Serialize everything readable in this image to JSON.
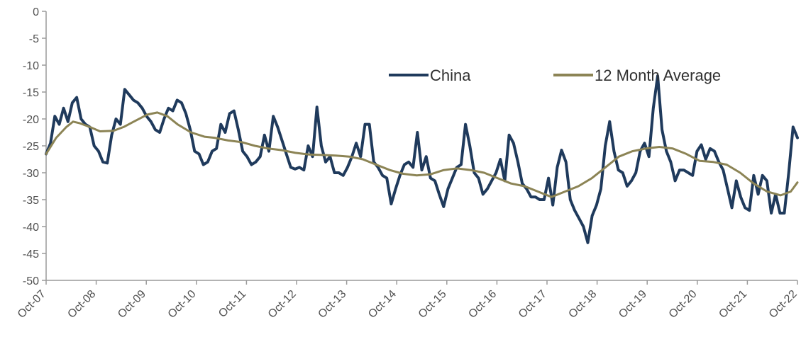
{
  "chart_data": {
    "type": "line",
    "title": "",
    "xlabel": "",
    "ylabel": "",
    "ylim": [
      -50,
      0
    ],
    "yticks": [
      0,
      -5,
      -10,
      -15,
      -20,
      -25,
      -30,
      -35,
      -40,
      -45,
      -50
    ],
    "xtick_labels": [
      "Oct-07",
      "Oct-08",
      "Oct-09",
      "Oct-10",
      "Oct-11",
      "Oct-12",
      "Oct-13",
      "Oct-14",
      "Oct-15",
      "Oct-16",
      "Oct-17",
      "Oct-18",
      "Oct-19",
      "Oct-20",
      "Oct-21",
      "Oct-22"
    ],
    "grid": false,
    "legend_position": "top-right",
    "series": [
      {
        "name": "China",
        "color": "#1f3a5c",
        "points": [
          [
            0.0,
            -26.5
          ],
          [
            0.1,
            -24.5
          ],
          [
            0.2,
            -19.5
          ],
          [
            0.3,
            -21
          ],
          [
            0.4,
            -18
          ],
          [
            0.5,
            -20.5
          ],
          [
            0.6,
            -17
          ],
          [
            0.7,
            -16
          ],
          [
            0.8,
            -20
          ],
          [
            0.9,
            -21
          ],
          [
            1.0,
            -21.5
          ],
          [
            1.1,
            -25
          ],
          [
            1.2,
            -26
          ],
          [
            1.3,
            -28
          ],
          [
            1.4,
            -28.2
          ],
          [
            1.5,
            -23
          ],
          [
            1.6,
            -20
          ],
          [
            1.7,
            -21
          ],
          [
            1.8,
            -14.5
          ],
          [
            1.9,
            -15.5
          ],
          [
            2.0,
            -16.5
          ],
          [
            2.1,
            -17
          ],
          [
            2.2,
            -18
          ],
          [
            2.3,
            -19.5
          ],
          [
            2.4,
            -20.5
          ],
          [
            2.5,
            -22
          ],
          [
            2.6,
            -22.5
          ],
          [
            2.7,
            -20
          ],
          [
            2.8,
            -18
          ],
          [
            2.9,
            -18.5
          ],
          [
            3.0,
            -16.5
          ],
          [
            3.1,
            -17
          ],
          [
            3.2,
            -19
          ],
          [
            3.3,
            -22
          ],
          [
            3.4,
            -26
          ],
          [
            3.5,
            -26.5
          ],
          [
            3.6,
            -28.5
          ],
          [
            3.7,
            -28
          ],
          [
            3.8,
            -26
          ],
          [
            3.9,
            -25.5
          ],
          [
            4.0,
            -21
          ],
          [
            4.1,
            -22.5
          ],
          [
            4.2,
            -19
          ],
          [
            4.3,
            -18.5
          ],
          [
            4.4,
            -22
          ],
          [
            4.5,
            -26
          ],
          [
            4.6,
            -27
          ],
          [
            4.7,
            -28.5
          ],
          [
            4.8,
            -28
          ],
          [
            4.9,
            -27
          ],
          [
            5.0,
            -23
          ],
          [
            5.1,
            -26
          ],
          [
            5.2,
            -19.5
          ],
          [
            5.3,
            -21.5
          ],
          [
            5.4,
            -24
          ],
          [
            5.5,
            -26.5
          ],
          [
            5.6,
            -29
          ],
          [
            5.7,
            -29.3
          ],
          [
            5.8,
            -29
          ],
          [
            5.9,
            -29.5
          ],
          [
            6.0,
            -25
          ],
          [
            6.1,
            -27
          ],
          [
            6.2,
            -17.8
          ],
          [
            6.3,
            -25
          ],
          [
            6.4,
            -28
          ],
          [
            6.5,
            -27
          ],
          [
            6.6,
            -30
          ],
          [
            6.7,
            -30
          ],
          [
            6.8,
            -30.5
          ],
          [
            6.9,
            -29
          ],
          [
            7.0,
            -27
          ],
          [
            7.1,
            -24.5
          ],
          [
            7.2,
            -27
          ],
          [
            7.3,
            -21
          ],
          [
            7.4,
            -21
          ],
          [
            7.5,
            -28
          ],
          [
            7.6,
            -29
          ],
          [
            7.7,
            -30.5
          ],
          [
            7.8,
            -31
          ],
          [
            7.9,
            -35.8
          ],
          [
            8.0,
            -33
          ],
          [
            8.1,
            -30.5
          ],
          [
            8.2,
            -28.5
          ],
          [
            8.3,
            -28
          ],
          [
            8.4,
            -29
          ],
          [
            8.5,
            -22.5
          ],
          [
            8.6,
            -29.5
          ],
          [
            8.7,
            -27
          ],
          [
            8.8,
            -31
          ],
          [
            8.9,
            -31.5
          ],
          [
            9.0,
            -34
          ],
          [
            9.1,
            -36.3
          ],
          [
            9.2,
            -33
          ],
          [
            9.3,
            -31
          ],
          [
            9.4,
            -29
          ],
          [
            9.5,
            -28.5
          ],
          [
            9.6,
            -21
          ],
          [
            9.7,
            -25
          ],
          [
            9.8,
            -30
          ],
          [
            9.9,
            -31
          ],
          [
            10.0,
            -34
          ],
          [
            10.1,
            -33
          ],
          [
            10.2,
            -31.5
          ],
          [
            10.3,
            -30
          ],
          [
            10.4,
            -27.5
          ],
          [
            10.5,
            -31.5
          ],
          [
            10.6,
            -23
          ],
          [
            10.7,
            -24.5
          ],
          [
            10.8,
            -28
          ],
          [
            10.9,
            -32
          ],
          [
            11.0,
            -33
          ],
          [
            11.1,
            -34.5
          ],
          [
            11.2,
            -34.5
          ],
          [
            11.3,
            -35
          ],
          [
            11.4,
            -35
          ],
          [
            11.5,
            -31
          ],
          [
            11.6,
            -36
          ],
          [
            11.7,
            -29
          ],
          [
            11.8,
            -25.8
          ],
          [
            11.9,
            -28
          ],
          [
            12.0,
            -35
          ],
          [
            12.1,
            -37
          ],
          [
            12.2,
            -38.5
          ],
          [
            12.3,
            -40
          ],
          [
            12.4,
            -43
          ],
          [
            12.5,
            -38
          ],
          [
            12.6,
            -36
          ],
          [
            12.7,
            -33
          ],
          [
            12.8,
            -25
          ],
          [
            12.9,
            -20.5
          ],
          [
            13.0,
            -26
          ],
          [
            13.1,
            -29.5
          ],
          [
            13.2,
            -30
          ],
          [
            13.3,
            -32.5
          ],
          [
            13.4,
            -31.5
          ],
          [
            13.5,
            -30
          ],
          [
            13.6,
            -26
          ],
          [
            13.7,
            -24.5
          ],
          [
            13.8,
            -27
          ],
          [
            13.9,
            -18
          ],
          [
            14.0,
            -12
          ],
          [
            14.1,
            -22
          ],
          [
            14.2,
            -26
          ],
          [
            14.3,
            -28
          ],
          [
            14.4,
            -31.5
          ],
          [
            14.5,
            -29.5
          ],
          [
            14.6,
            -29.5
          ],
          [
            14.7,
            -30
          ],
          [
            14.8,
            -30.5
          ],
          [
            14.9,
            -26
          ],
          [
            15.0,
            -24.8
          ],
          [
            15.1,
            -27.5
          ],
          [
            15.2,
            -25.5
          ],
          [
            15.3,
            -26
          ],
          [
            15.4,
            -28
          ],
          [
            15.5,
            -29.5
          ],
          [
            15.6,
            -33
          ],
          [
            15.7,
            -36.5
          ],
          [
            15.8,
            -31.5
          ],
          [
            15.9,
            -34.5
          ],
          [
            16.0,
            -36.5
          ],
          [
            16.1,
            -37
          ],
          [
            16.2,
            -30.5
          ],
          [
            16.3,
            -34
          ],
          [
            16.4,
            -30.5
          ],
          [
            16.5,
            -31.5
          ],
          [
            16.6,
            -37.5
          ],
          [
            16.7,
            -34
          ],
          [
            16.8,
            -37.5
          ],
          [
            16.9,
            -37.5
          ],
          [
            17.0,
            -30
          ],
          [
            17.1,
            -21.5
          ],
          [
            17.2,
            -23.5
          ]
        ]
      },
      {
        "name": "12 Month Average",
        "color": "#8c8455",
        "points": [
          [
            0.0,
            -26.5
          ],
          [
            0.3,
            -23.5
          ],
          [
            0.6,
            -21.5
          ],
          [
            0.8,
            -20.5
          ],
          [
            1.0,
            -20.8
          ],
          [
            1.3,
            -21.5
          ],
          [
            1.6,
            -22.3
          ],
          [
            2.0,
            -22.2
          ],
          [
            2.3,
            -21.5
          ],
          [
            2.6,
            -20.5
          ],
          [
            3.0,
            -19.2
          ],
          [
            3.3,
            -18.8
          ],
          [
            3.6,
            -19.5
          ],
          [
            3.9,
            -21
          ],
          [
            4.3,
            -22.5
          ],
          [
            4.7,
            -23.3
          ],
          [
            5.0,
            -23.5
          ],
          [
            5.4,
            -24
          ],
          [
            5.8,
            -24.3
          ],
          [
            6.2,
            -25
          ],
          [
            6.6,
            -25.5
          ],
          [
            7.0,
            -25.8
          ],
          [
            7.4,
            -26.3
          ],
          [
            7.8,
            -26.6
          ],
          [
            8.2,
            -26.7
          ],
          [
            8.6,
            -26.8
          ],
          [
            9.0,
            -27
          ],
          [
            9.4,
            -27.5
          ],
          [
            9.8,
            -28.5
          ],
          [
            10.2,
            -29.5
          ],
          [
            10.6,
            -30.2
          ],
          [
            11.0,
            -30.5
          ],
          [
            11.4,
            -30.3
          ],
          [
            11.8,
            -29.5
          ],
          [
            12.2,
            -29.2
          ],
          [
            12.6,
            -29.5
          ],
          [
            13.0,
            -30
          ],
          [
            13.4,
            -31
          ],
          [
            13.8,
            -32
          ],
          [
            14.2,
            -32.5
          ],
          [
            14.6,
            -33.5
          ],
          [
            15.0,
            -34.5
          ],
          [
            15.4,
            -33.5
          ],
          [
            15.8,
            -32.5
          ],
          [
            16.2,
            -31
          ],
          [
            16.6,
            -29
          ],
          [
            17.0,
            -27
          ],
          [
            17.4,
            -26
          ],
          [
            17.8,
            -25.5
          ],
          [
            18.2,
            -25.2
          ],
          [
            18.6,
            -25.5
          ],
          [
            19.0,
            -26.5
          ],
          [
            19.4,
            -27.8
          ],
          [
            19.8,
            -28
          ],
          [
            20.2,
            -28.5
          ],
          [
            20.6,
            -30
          ],
          [
            21.0,
            -32
          ],
          [
            21.4,
            -33.5
          ],
          [
            21.8,
            -34.2
          ],
          [
            22.1,
            -33.5
          ],
          [
            22.3,
            -31.8
          ]
        ]
      }
    ]
  }
}
